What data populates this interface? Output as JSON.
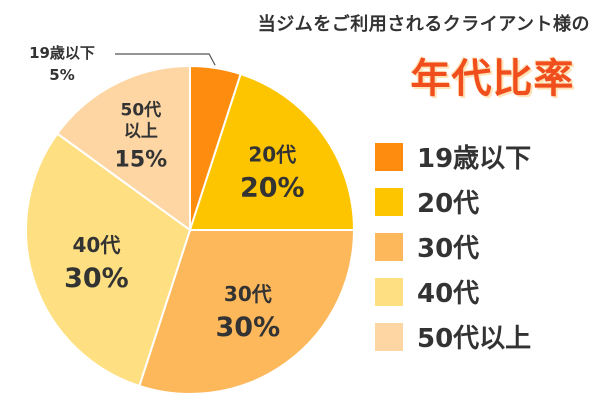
{
  "chart_data": {
    "type": "pie",
    "subtitle": "当ジムをご利用されるクライアント様の",
    "title": "年代比率",
    "legend_position": "right",
    "categories": [
      "19歳以下",
      "20代",
      "30代",
      "40代",
      "50代以上"
    ],
    "values": [
      5,
      20,
      30,
      30,
      15
    ],
    "value_labels": [
      "5%",
      "20%",
      "30%",
      "30%",
      "15%"
    ],
    "slice_labels": [
      [
        "19歳以下"
      ],
      [
        "20代"
      ],
      [
        "30代"
      ],
      [
        "40代"
      ],
      [
        "50代",
        "以上"
      ]
    ],
    "colors": [
      "#fd8c0f",
      "#fdc500",
      "#fdb85c",
      "#fee082",
      "#fdd6a4"
    ]
  }
}
